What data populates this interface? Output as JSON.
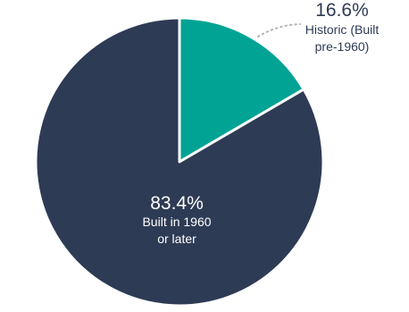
{
  "chart_data": {
    "type": "pie",
    "slices": [
      {
        "value": 16.6,
        "value_label": "16.6%",
        "label_lines": [
          "Historic (Built",
          "pre-1960)"
        ],
        "color": "#00a394",
        "label_color": "#2e3b55",
        "label_placement": "outside-top-right"
      },
      {
        "value": 83.4,
        "value_label": "83.4%",
        "label_lines": [
          "Built in 1960",
          "or later"
        ],
        "color": "#2e3b55",
        "label_color": "#ffffff",
        "label_placement": "inside"
      }
    ],
    "start": "12 o'clock",
    "direction": "clockwise",
    "leader_line_color": "#b3b3b3",
    "background": "#ffffff"
  }
}
